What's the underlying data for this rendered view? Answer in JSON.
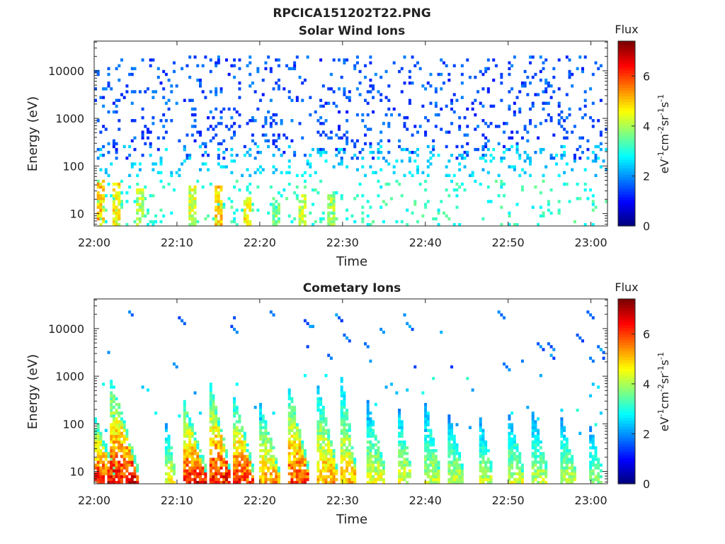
{
  "figure_title": "RPCICA151202T22.PNG",
  "chart_data": [
    {
      "type": "heatmap",
      "title": "Solar Wind Ions",
      "xlabel": "Time",
      "ylabel": "Energy (eV)",
      "x_ticks": [
        "22:00",
        "22:10",
        "22:20",
        "22:30",
        "22:40",
        "22:50",
        "23:00"
      ],
      "x_range_minutes": [
        0,
        62
      ],
      "y_scale": "log",
      "y_ticks": [
        10,
        100,
        1000,
        10000
      ],
      "y_tick_labels": [
        "10",
        "100",
        "1000",
        "10000"
      ],
      "y_range": [
        5.5,
        42000
      ],
      "colorbar": {
        "title": "Flux",
        "label": "eV-1cm-2sr-1s-1",
        "range": [
          0,
          7.4
        ],
        "ticks": [
          0,
          2,
          4,
          6
        ],
        "tick_labels": [
          "0",
          "2",
          "4",
          "6"
        ],
        "colormap": "jet"
      },
      "dominant_pattern": {
        "scatter_high_energy": {
          "energy_range": [
            150,
            20000
          ],
          "flux_typical": 1.5
        },
        "scatter_mid_energy": {
          "energy_range": [
            60,
            250
          ],
          "flux_typical": 2.5
        },
        "low_energy_bursts": [
          {
            "time_min": 0.4,
            "flux": 5.3,
            "energy_top": 45
          },
          {
            "time_min": 2.5,
            "flux": 5.0,
            "energy_top": 40
          },
          {
            "time_min": 5.3,
            "flux": 4.3,
            "energy_top": 30
          },
          {
            "time_min": 11.6,
            "flux": 4.6,
            "energy_top": 35
          },
          {
            "time_min": 14.8,
            "flux": 5.2,
            "energy_top": 35
          },
          {
            "time_min": 18.3,
            "flux": 5.0,
            "energy_top": 20
          },
          {
            "time_min": 21.8,
            "flux": 4.0,
            "energy_top": 20
          },
          {
            "time_min": 24.9,
            "flux": 4.5,
            "energy_top": 25
          },
          {
            "time_min": 28.3,
            "flux": 4.2,
            "energy_top": 25
          }
        ]
      }
    },
    {
      "type": "heatmap",
      "title": "Cometary Ions",
      "xlabel": "Time",
      "ylabel": "Energy (eV)",
      "x_ticks": [
        "22:00",
        "22:10",
        "22:20",
        "22:30",
        "22:40",
        "22:50",
        "23:00"
      ],
      "x_range_minutes": [
        0,
        62
      ],
      "y_scale": "log",
      "y_ticks": [
        10,
        100,
        1000,
        10000
      ],
      "y_tick_labels": [
        "10",
        "100",
        "1000",
        "10000"
      ],
      "y_range": [
        5.5,
        42000
      ],
      "colorbar": {
        "title": "Flux",
        "label": "eV-1cm-2sr-1s-1",
        "range": [
          0,
          7.4
        ],
        "ticks": [
          0,
          2,
          4,
          6
        ],
        "tick_labels": [
          "0",
          "2",
          "4",
          "6"
        ],
        "colormap": "jet"
      },
      "dispersion_events": [
        {
          "start_min": 0.0,
          "width_min": 2.6,
          "e_top": 120,
          "flux_peak": 6.7
        },
        {
          "start_min": 2.0,
          "width_min": 3.6,
          "e_top": 900,
          "flux_peak": 6.6
        },
        {
          "start_min": 8.8,
          "width_min": 1.4,
          "e_top": 90,
          "flux_peak": 4.8
        },
        {
          "start_min": 11.0,
          "width_min": 3.0,
          "e_top": 300,
          "flux_peak": 6.6
        },
        {
          "start_min": 14.0,
          "width_min": 2.6,
          "e_top": 700,
          "flux_peak": 6.6
        },
        {
          "start_min": 17.0,
          "width_min": 2.4,
          "e_top": 400,
          "flux_peak": 6.3
        },
        {
          "start_min": 20.0,
          "width_min": 2.6,
          "e_top": 250,
          "flux_peak": 5.5
        },
        {
          "start_min": 23.5,
          "width_min": 2.5,
          "e_top": 600,
          "flux_peak": 6.2
        },
        {
          "start_min": 27.0,
          "width_min": 2.4,
          "e_top": 600,
          "flux_peak": 5.5
        },
        {
          "start_min": 30.0,
          "width_min": 2.0,
          "e_top": 900,
          "flux_peak": 5.2
        },
        {
          "start_min": 33.0,
          "width_min": 2.2,
          "e_top": 300,
          "flux_peak": 4.6
        },
        {
          "start_min": 37.0,
          "width_min": 1.6,
          "e_top": 200,
          "flux_peak": 4.6
        },
        {
          "start_min": 40.0,
          "width_min": 2.0,
          "e_top": 250,
          "flux_peak": 4.4
        },
        {
          "start_min": 43.0,
          "width_min": 2.0,
          "e_top": 150,
          "flux_peak": 4.4
        },
        {
          "start_min": 46.8,
          "width_min": 1.6,
          "e_top": 120,
          "flux_peak": 4.3
        },
        {
          "start_min": 50.0,
          "width_min": 2.0,
          "e_top": 150,
          "flux_peak": 4.4
        },
        {
          "start_min": 53.0,
          "width_min": 2.0,
          "e_top": 200,
          "flux_peak": 4.3
        },
        {
          "start_min": 56.5,
          "width_min": 2.0,
          "e_top": 120,
          "flux_peak": 4.4
        },
        {
          "start_min": 60.0,
          "width_min": 1.5,
          "e_top": 80,
          "flux_peak": 4.0
        }
      ],
      "high_energy_streaks": {
        "energy_range": [
          1500,
          25000
        ],
        "flux_typical": 1.6
      }
    }
  ]
}
